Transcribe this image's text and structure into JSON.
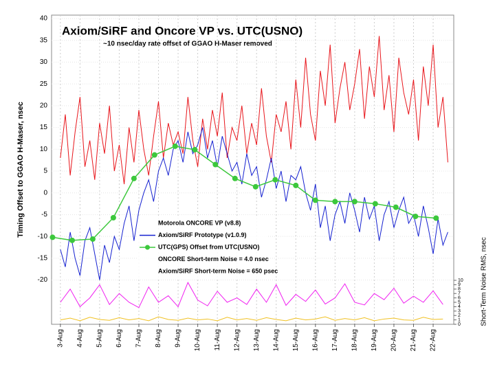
{
  "chart_data": {
    "type": "line",
    "title": "Axiom/SiRF and Oncore VP vs. UTC(USNO)",
    "subtitle": "~10 nsec/day rate offset of GGAO H-Maser removed",
    "ylabel": "Timing Offset to GGAO H-Maser, nsec",
    "y2label": "Short-Term Noise RMS, nsec",
    "xlim": [
      2.55,
      23.05
    ],
    "xticks": [
      {
        "value": 3,
        "label": "3-Aug"
      },
      {
        "value": 4,
        "label": "4-Aug"
      },
      {
        "value": 5,
        "label": "5-Aug"
      },
      {
        "value": 6,
        "label": "6-Aug"
      },
      {
        "value": 7,
        "label": "7-Aug"
      },
      {
        "value": 8,
        "label": "8-Aug"
      },
      {
        "value": 9,
        "label": "9-Aug"
      },
      {
        "value": 10,
        "label": "10-Aug"
      },
      {
        "value": 11,
        "label": "11-Aug"
      },
      {
        "value": 12,
        "label": "12-Aug"
      },
      {
        "value": 13,
        "label": "13-Aug"
      },
      {
        "value": 14,
        "label": "14-Aug"
      },
      {
        "value": 15,
        "label": "15-Aug"
      },
      {
        "value": 16,
        "label": "16-Aug"
      },
      {
        "value": 17,
        "label": "17-Aug"
      },
      {
        "value": 18,
        "label": "18-Aug"
      },
      {
        "value": 19,
        "label": "19-Aug"
      },
      {
        "value": 20,
        "label": "20-Aug"
      },
      {
        "value": 21,
        "label": "21-Aug"
      },
      {
        "value": 22,
        "label": "22-Aug"
      }
    ],
    "ylim": [
      -30,
      40
    ],
    "yticks": [
      40,
      35,
      30,
      25,
      20,
      15,
      10,
      5,
      0,
      -5,
      -10,
      -15,
      -20
    ],
    "y2lim": [
      0,
      10
    ],
    "y2ticks": [
      10,
      9,
      8,
      7,
      6,
      5,
      4,
      3,
      2,
      1,
      0
    ],
    "grid": true,
    "series": [
      {
        "name": "Motorola ONCORE VP (v8.8)",
        "color": "#e8141a",
        "legend_line": false,
        "x": [
          3,
          3.25,
          3.5,
          3.75,
          4,
          4.25,
          4.5,
          4.75,
          5,
          5.25,
          5.5,
          5.75,
          6,
          6.25,
          6.5,
          6.75,
          7,
          7.25,
          7.5,
          7.75,
          8,
          8.25,
          8.5,
          8.75,
          9,
          9.25,
          9.5,
          9.75,
          10,
          10.25,
          10.5,
          10.75,
          11,
          11.25,
          11.5,
          11.75,
          12,
          12.25,
          12.5,
          12.75,
          13,
          13.25,
          13.5,
          13.75,
          14,
          14.25,
          14.5,
          14.75,
          15,
          15.25,
          15.5,
          15.75,
          16,
          16.25,
          16.5,
          16.75,
          17,
          17.25,
          17.5,
          17.75,
          18,
          18.25,
          18.5,
          18.75,
          19,
          19.25,
          19.5,
          19.75,
          20,
          20.25,
          20.5,
          20.75,
          21,
          21.25,
          21.5,
          21.75,
          22,
          22.25,
          22.5,
          22.75
        ],
        "values": [
          8,
          18,
          4,
          14,
          22,
          6,
          12,
          3,
          16,
          9,
          20,
          5,
          11,
          2,
          15,
          7,
          19,
          10,
          4,
          13,
          21,
          8,
          16,
          11,
          14,
          9,
          22,
          12,
          6,
          17,
          10,
          19,
          13,
          23,
          8,
          15,
          12,
          20,
          9,
          16,
          11,
          24,
          13,
          7,
          18,
          14,
          21,
          10,
          26,
          15,
          31,
          18,
          12,
          28,
          20,
          34,
          16,
          24,
          30,
          19,
          25,
          33,
          17,
          29,
          22,
          36,
          19,
          27,
          14,
          31,
          23,
          18,
          26,
          12,
          29,
          20,
          34,
          15,
          22,
          7
        ]
      },
      {
        "name": "Axiom/SiRF Prototype (v1.0.9)",
        "color": "#1420d0",
        "legend_line": true,
        "x": [
          3,
          3.25,
          3.5,
          3.75,
          4,
          4.25,
          4.5,
          4.75,
          5,
          5.25,
          5.5,
          5.75,
          6,
          6.25,
          6.5,
          6.75,
          7,
          7.25,
          7.5,
          7.75,
          8,
          8.25,
          8.5,
          8.75,
          9,
          9.25,
          9.5,
          9.75,
          10,
          10.25,
          10.5,
          10.75,
          11,
          11.25,
          11.5,
          11.75,
          12,
          12.25,
          12.5,
          12.75,
          13,
          13.25,
          13.5,
          13.75,
          14,
          14.25,
          14.5,
          14.75,
          15,
          15.25,
          15.5,
          15.75,
          16,
          16.25,
          16.5,
          16.75,
          17,
          17.25,
          17.5,
          17.75,
          18,
          18.25,
          18.5,
          18.75,
          19,
          19.25,
          19.5,
          19.75,
          20,
          20.25,
          20.5,
          20.75,
          21,
          21.25,
          21.5,
          21.75,
          22,
          22.25,
          22.5,
          22.75
        ],
        "values": [
          -13,
          -17,
          -9,
          -15,
          -19,
          -11,
          -8,
          -14,
          -20,
          -12,
          -16,
          -10,
          -13,
          -7,
          -3,
          -11,
          -4,
          0,
          3,
          -2,
          5,
          8,
          4,
          10,
          12,
          7,
          14,
          9,
          11,
          15,
          8,
          12,
          6,
          13,
          9,
          5,
          7,
          2,
          9,
          4,
          6,
          -1,
          3,
          8,
          1,
          5,
          -2,
          4,
          3,
          6,
          0,
          -4,
          2,
          -8,
          -3,
          -11,
          -5,
          -2,
          -7,
          0,
          -4,
          -9,
          -1,
          -6,
          -3,
          -11,
          -5,
          -2,
          -8,
          -4,
          -1,
          -7,
          -5,
          -10,
          -3,
          -8,
          -14,
          -6,
          -12,
          -9
        ]
      },
      {
        "name": "UTC(GPS) Offset from UTC(USNO)",
        "color": "#3cc83c",
        "legend_line": true,
        "markers": true,
        "x": [
          2.6,
          3.6,
          4.65,
          5.7,
          6.75,
          7.8,
          8.85,
          9.85,
          10.9,
          11.9,
          12.95,
          13.95,
          15,
          16,
          17,
          18,
          19.05,
          20.1,
          21.1,
          22.15
        ],
        "values": [
          -10.2,
          -10.9,
          -10.6,
          -5.7,
          3.3,
          8.7,
          10.7,
          9.9,
          6.5,
          3.3,
          1.4,
          3,
          1.7,
          -1.7,
          -2,
          -2,
          -2.5,
          -3.3,
          -5.4,
          -5.8
        ]
      },
      {
        "name": "ONCORE Short-term Noise = 4.0 nsec",
        "color": "#f020f0",
        "axis": "y2",
        "legend_line": false,
        "x": [
          3,
          3.5,
          4,
          4.5,
          5,
          5.5,
          6,
          6.5,
          7,
          7.5,
          8,
          8.5,
          9,
          9.5,
          10,
          10.5,
          11,
          11.5,
          12,
          12.5,
          13,
          13.5,
          14,
          14.5,
          15,
          15.5,
          16,
          16.5,
          17,
          17.5,
          18,
          18.5,
          19,
          19.5,
          20,
          20.5,
          21,
          21.5,
          22,
          22.5
        ],
        "values": [
          5,
          8,
          4,
          6,
          9,
          4.5,
          7,
          5,
          3.8,
          8.5,
          5,
          6.5,
          4,
          9.5,
          5.5,
          4.2,
          7.5,
          5,
          6,
          4.5,
          8,
          5,
          9,
          4.3,
          6.8,
          5.2,
          7.8,
          4.6,
          6,
          9.2,
          5,
          4.4,
          7,
          5.6,
          8.2,
          4.8,
          6.4,
          5,
          7.6,
          4.5
        ]
      },
      {
        "name": "Axiom/SiRF Short-term Noise = 650 psec",
        "color": "#f0c020",
        "axis": "y2",
        "legend_line": false,
        "x": [
          3,
          3.5,
          4,
          4.5,
          5,
          5.5,
          6,
          6.5,
          7,
          7.5,
          8,
          8.5,
          9,
          9.5,
          10,
          10.5,
          11,
          11.5,
          12,
          12.5,
          13,
          13.5,
          14,
          14.5,
          15,
          15.5,
          16,
          16.5,
          17,
          17.5,
          18,
          18.5,
          19,
          19.5,
          20,
          20.5,
          21,
          21.5,
          22,
          22.5
        ],
        "values": [
          1,
          1.4,
          0.8,
          1.6,
          1.1,
          0.9,
          1.5,
          1,
          1.3,
          0.8,
          1.7,
          1.1,
          0.9,
          1.4,
          1,
          1.2,
          0.8,
          1.6,
          1,
          1.3,
          0.9,
          1.5,
          1.1,
          0.8,
          1.4,
          1,
          1.2,
          1.7,
          0.9,
          1.3,
          1,
          1.5,
          0.8,
          1.2,
          1.4,
          1,
          0.9,
          1.6,
          1.1,
          1.2
        ]
      }
    ]
  }
}
